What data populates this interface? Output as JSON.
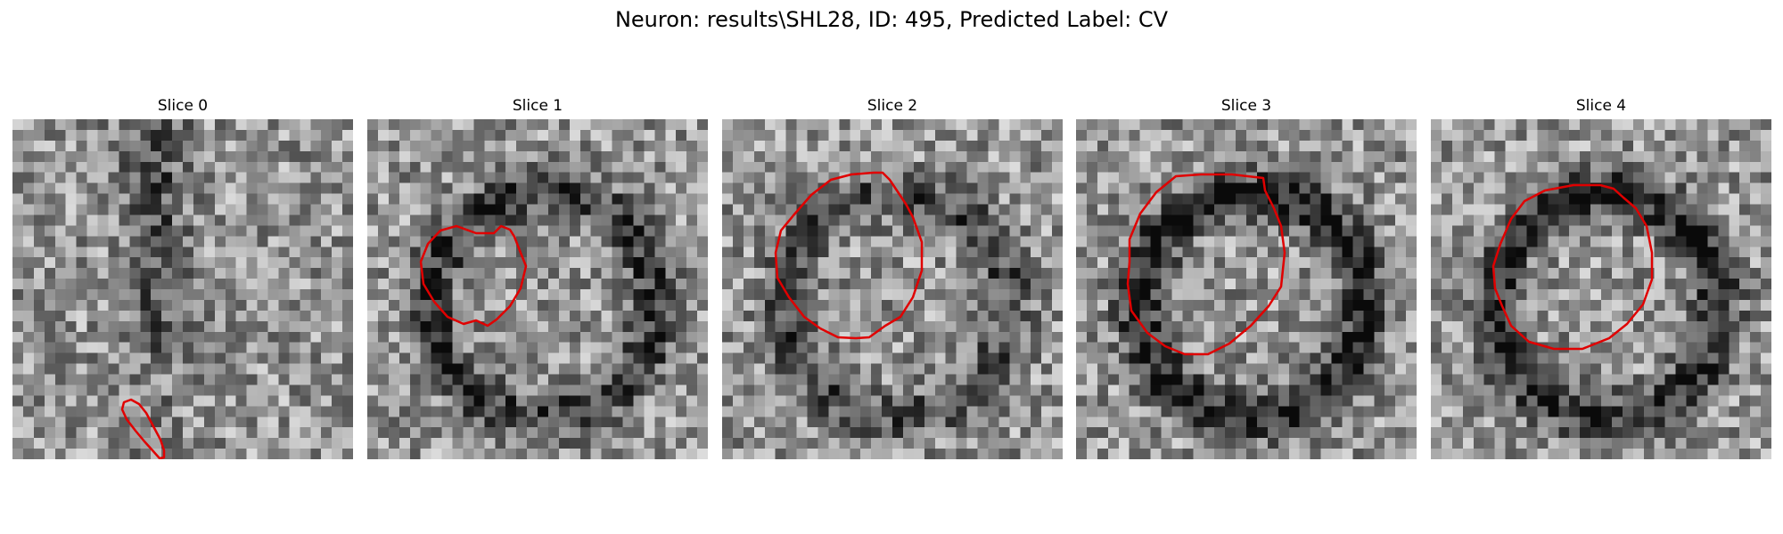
{
  "figure": {
    "title": "Neuron: results\\SHL28, ID: 495, Predicted Label: CV",
    "contour_color": "#e00000",
    "colormap": "grayscale",
    "panels": [
      {
        "title": "Slice 0",
        "seed": 11,
        "dark_ring": 0.0
      },
      {
        "title": "Slice 1",
        "seed": 23,
        "dark_ring": 0.45
      },
      {
        "title": "Slice 2",
        "seed": 37,
        "dark_ring": 0.35
      },
      {
        "title": "Slice 3",
        "seed": 41,
        "dark_ring": 0.55
      },
      {
        "title": "Slice 4",
        "seed": 59,
        "dark_ring": 0.5
      }
    ]
  }
}
